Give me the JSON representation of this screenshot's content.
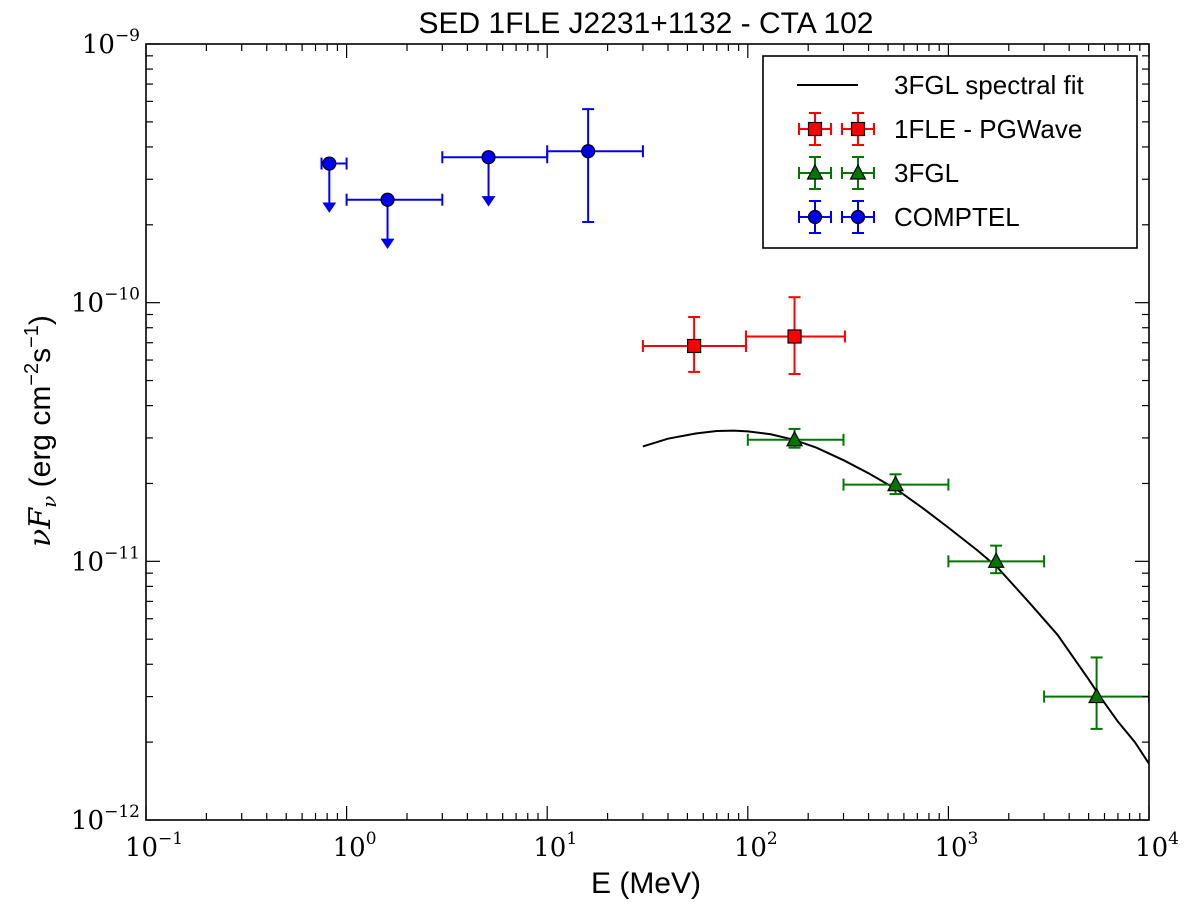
{
  "chart_data": {
    "type": "scatter",
    "title": "SED 1FLE J2231+1132 - CTA 102",
    "xlabel": "E (MeV)",
    "ylabel": {
      "symbol_nu": "ν",
      "symbol_F": "F",
      "symbol_sub": "ν",
      "units_open": " (erg cm",
      "exp_cm": "−2",
      "units_s": "s",
      "exp_s": "−1",
      "units_close": ")"
    },
    "xscale": "log",
    "yscale": "log",
    "xlim": [
      0.1,
      10000
    ],
    "ylim": [
      1e-12,
      1e-09
    ],
    "xticks": [
      {
        "value": 0.1,
        "base": "10",
        "exp": "−1"
      },
      {
        "value": 1,
        "base": "10",
        "exp": "0"
      },
      {
        "value": 10,
        "base": "10",
        "exp": "1"
      },
      {
        "value": 100,
        "base": "10",
        "exp": "2"
      },
      {
        "value": 1000,
        "base": "10",
        "exp": "3"
      },
      {
        "value": 10000,
        "base": "10",
        "exp": "4"
      }
    ],
    "yticks": [
      {
        "value": 1e-12,
        "base": "10",
        "exp": "−12"
      },
      {
        "value": 1e-11,
        "base": "10",
        "exp": "−11"
      },
      {
        "value": 1e-10,
        "base": "10",
        "exp": "−10"
      },
      {
        "value": 1e-09,
        "base": "10",
        "exp": "−9"
      }
    ],
    "legend_position": "top-right",
    "series": [
      {
        "name": "3FGL spectral fit",
        "kind": "line",
        "color": "#000000",
        "x": [
          30,
          40,
          55,
          70,
          85,
          100,
          130,
          170,
          220,
          300,
          400,
          550,
          750,
          1000,
          1400,
          1750,
          2500,
          3500,
          5000,
          5700,
          7000,
          8500,
          10000
        ],
        "y": [
          2.78e-11,
          2.98e-11,
          3.12e-11,
          3.19e-11,
          3.2e-11,
          3.18e-11,
          3.1e-11,
          2.95e-11,
          2.75e-11,
          2.46e-11,
          2.19e-11,
          1.9e-11,
          1.6e-11,
          1.35e-11,
          1.1e-11,
          9.5e-12,
          7e-12,
          5.2e-12,
          3.5e-12,
          3e-12,
          2.4e-12,
          2e-12,
          1.65e-12
        ]
      },
      {
        "name": "1FLE - PGWave",
        "kind": "points",
        "marker": "square",
        "color": "#ff0000",
        "points": [
          {
            "x": 54,
            "y": 6.8e-11,
            "xlo": 30,
            "xhi": 98,
            "ylo": 5.4e-11,
            "yhi": 8.8e-11
          },
          {
            "x": 171,
            "y": 7.4e-11,
            "xlo": 98,
            "xhi": 305,
            "ylo": 5.3e-11,
            "yhi": 1.05e-10
          }
        ]
      },
      {
        "name": "3FGL",
        "kind": "points",
        "marker": "triangle",
        "color": "#007700",
        "points": [
          {
            "x": 171,
            "y": 2.95e-11,
            "xlo": 100,
            "xhi": 300,
            "ylo": 2.75e-11,
            "yhi": 3.25e-11
          },
          {
            "x": 545,
            "y": 1.98e-11,
            "xlo": 300,
            "xhi": 1000,
            "ylo": 1.82e-11,
            "yhi": 2.17e-11
          },
          {
            "x": 1730,
            "y": 1e-11,
            "xlo": 1000,
            "xhi": 3000,
            "ylo": 9e-12,
            "yhi": 1.15e-11
          },
          {
            "x": 5480,
            "y": 3e-12,
            "xlo": 3000,
            "xhi": 10000,
            "ylo": 2.25e-12,
            "yhi": 4.25e-12
          }
        ]
      },
      {
        "name": "COMPTEL",
        "kind": "points",
        "marker": "circle",
        "color": "#0000ee",
        "points": [
          {
            "x": 0.82,
            "y": 3.45e-10,
            "xlo": 0.75,
            "xhi": 1.0,
            "upper_limit": true
          },
          {
            "x": 1.6,
            "y": 2.5e-10,
            "xlo": 1.0,
            "xhi": 3.0,
            "upper_limit": true
          },
          {
            "x": 5.1,
            "y": 3.65e-10,
            "xlo": 3.0,
            "xhi": 10.0,
            "upper_limit": true
          },
          {
            "x": 16,
            "y": 3.85e-10,
            "xlo": 10,
            "xhi": 30,
            "ylo": 2.05e-10,
            "yhi": 5.6e-10
          }
        ]
      }
    ]
  }
}
